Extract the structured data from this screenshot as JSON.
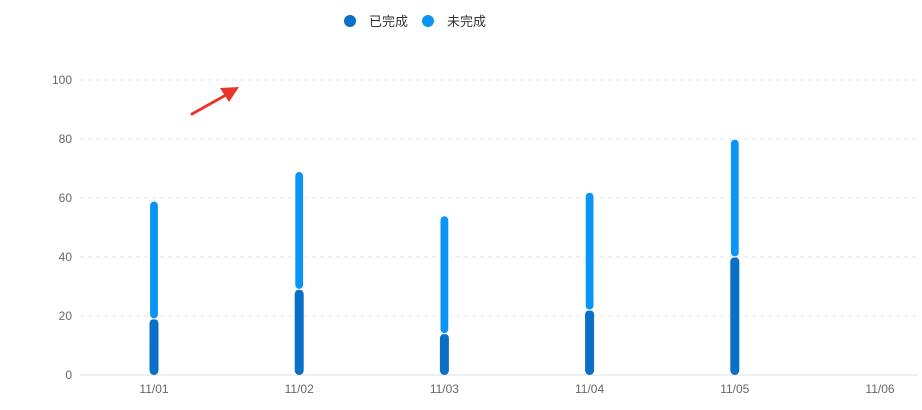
{
  "chart_data": {
    "type": "bar",
    "stacked": true,
    "categories": [
      "11/01",
      "11/02",
      "11/03",
      "11/04",
      "11/05",
      "11/06"
    ],
    "series": [
      {
        "name": "已完成",
        "color": "#0a6fc7",
        "values": [
          19,
          29,
          14,
          22,
          40,
          null
        ]
      },
      {
        "name": "未完成",
        "color": "#0a94f5",
        "values": [
          40,
          40,
          40,
          40,
          40,
          null
        ]
      }
    ],
    "title": "",
    "xlabel": "",
    "ylabel": "",
    "ylim": [
      0,
      100
    ],
    "yticks": [
      0,
      20,
      40,
      60,
      80,
      100
    ],
    "grid": true,
    "legend_position": "top-center"
  },
  "annotation": {
    "type": "arrow",
    "color": "#e8362a",
    "icon": "red-arrow-icon"
  }
}
